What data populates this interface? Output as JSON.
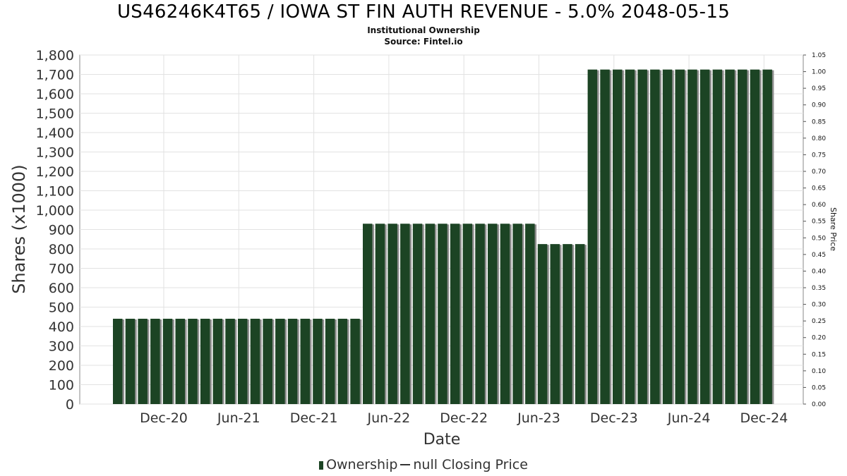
{
  "title": "US46246K4T65 / IOWA ST FIN AUTH REVENUE - 5.0% 2048-05-15",
  "subtitle": "Institutional Ownership",
  "source": "Source: Fintel.io",
  "legend": {
    "ownership": "Ownership",
    "price": "null Closing Price"
  },
  "chart_data": {
    "type": "bar",
    "title": "US46246K4T65 / IOWA ST FIN AUTH REVENUE - 5.0% 2048-05-15",
    "xlabel": "Date",
    "ylabel": "Shares (x1000)",
    "y2label": "Share Price",
    "ylim": [
      0,
      1800
    ],
    "y2lim": [
      0,
      1.05
    ],
    "yticks": [
      "0",
      "100",
      "200",
      "300",
      "400",
      "500",
      "600",
      "700",
      "800",
      "900",
      "1,000",
      "1,100",
      "1,200",
      "1,300",
      "1,400",
      "1,500",
      "1,600",
      "1,700",
      "1,800"
    ],
    "y2ticks": [
      "0.00",
      "0.05",
      "0.10",
      "0.15",
      "0.20",
      "0.25",
      "0.30",
      "0.35",
      "0.40",
      "0.45",
      "0.50",
      "0.55",
      "0.60",
      "0.65",
      "0.70",
      "0.75",
      "0.80",
      "0.85",
      "0.90",
      "0.95",
      "1.00",
      "1.05"
    ],
    "xticks": [
      "Dec-20",
      "Jun-21",
      "Dec-21",
      "Jun-22",
      "Dec-22",
      "Jun-23",
      "Dec-23",
      "Jun-24",
      "Dec-24"
    ],
    "grid": true,
    "legend_position": "bottom",
    "series": [
      {
        "name": "Ownership",
        "color": "#1c4424",
        "values": [
          440,
          440,
          440,
          440,
          440,
          440,
          440,
          440,
          440,
          440,
          440,
          440,
          440,
          440,
          440,
          440,
          440,
          440,
          440,
          440,
          930,
          930,
          930,
          930,
          930,
          930,
          930,
          930,
          930,
          930,
          930,
          930,
          930,
          930,
          825,
          825,
          825,
          825,
          1725,
          1725,
          1725,
          1725,
          1725,
          1725,
          1725,
          1725,
          1725,
          1725,
          1725,
          1725,
          1725,
          1725,
          1725
        ]
      },
      {
        "name": "null Closing Price",
        "color": "#333333",
        "values": []
      }
    ]
  }
}
